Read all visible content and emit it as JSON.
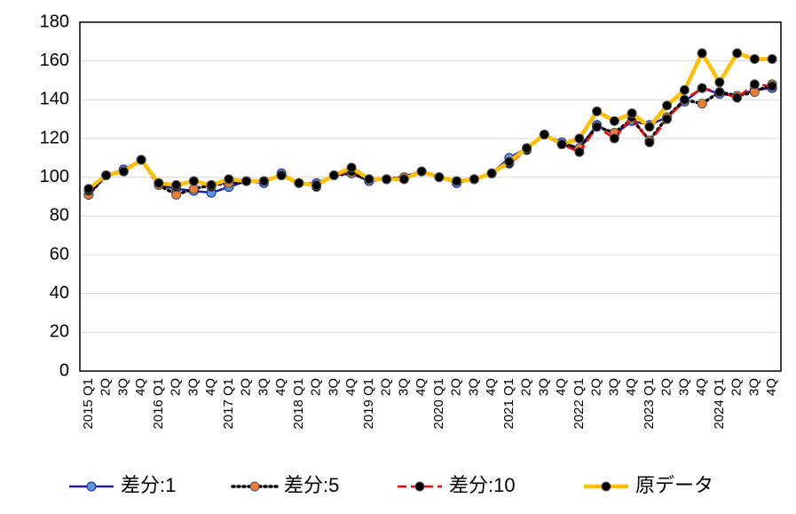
{
  "chart_data": {
    "type": "line",
    "categories": [
      "2015 Q1",
      "2Q",
      "3Q",
      "4Q",
      "2016 Q1",
      "2Q",
      "3Q",
      "4Q",
      "2017 Q1",
      "2Q",
      "3Q",
      "4Q",
      "2018 Q1",
      "2Q",
      "3Q",
      "4Q",
      "2019 Q1",
      "2Q",
      "3Q",
      "4Q",
      "2020 Q1",
      "2Q",
      "3Q",
      "4Q",
      "2021 Q1",
      "2Q",
      "3Q",
      "4Q",
      "2022 Q1",
      "2Q",
      "3Q",
      "4Q",
      "2023 Q1",
      "2Q",
      "3Q",
      "4Q",
      "2024 Q1",
      "2Q",
      "3Q",
      "4Q"
    ],
    "series": [
      {
        "name": "差分:1",
        "color": "#1f1fa8",
        "marker_color": "#5b9bd5",
        "dash": "solid",
        "values": [
          91,
          101,
          104,
          109,
          96,
          94,
          93,
          92,
          95,
          98,
          97,
          102,
          97,
          97,
          101,
          102,
          98,
          99,
          100,
          103,
          100,
          97,
          99,
          102,
          110,
          115,
          122,
          118,
          115,
          127,
          122,
          129,
          127,
          131,
          139,
          146,
          143,
          142,
          145,
          146
        ]
      },
      {
        "name": "差分:5",
        "color": "#000000",
        "marker_color": "#ed7d31",
        "dash": "dotted",
        "values": [
          91,
          101,
          103,
          109,
          96,
          91,
          94,
          96,
          97,
          98,
          98,
          101,
          97,
          96,
          101,
          102,
          99,
          99,
          100,
          103,
          100,
          98,
          99,
          102,
          108,
          115,
          122,
          117,
          115,
          126,
          123,
          130,
          119,
          131,
          140,
          138,
          144,
          142,
          144,
          148
        ]
      },
      {
        "name": "差分:10",
        "color": "#ff0000",
        "marker_color": "#000000",
        "dash": "dashed",
        "values": [
          93,
          101,
          103,
          109,
          97,
          95,
          98,
          95,
          99,
          98,
          98,
          101,
          97,
          95,
          101,
          103,
          99,
          99,
          99,
          103,
          100,
          98,
          99,
          102,
          107,
          114,
          122,
          117,
          113,
          126,
          120,
          131,
          118,
          130,
          140,
          146,
          144,
          141,
          148,
          147
        ]
      },
      {
        "name": "原データ",
        "color": "#ffc000",
        "marker_color": "#000000",
        "dash": "solid",
        "values": [
          94,
          101,
          103,
          109,
          97,
          96,
          98,
          96,
          99,
          98,
          98,
          101,
          97,
          96,
          101,
          105,
          99,
          99,
          99,
          103,
          100,
          98,
          99,
          102,
          108,
          115,
          122,
          117,
          120,
          134,
          129,
          133,
          126,
          137,
          145,
          164,
          149,
          164,
          161,
          161
        ]
      }
    ],
    "ylim": [
      0,
      180
    ],
    "yticks": [
      0,
      20,
      40,
      60,
      80,
      100,
      120,
      140,
      160,
      180
    ],
    "grid": true,
    "legend": "bottom"
  }
}
